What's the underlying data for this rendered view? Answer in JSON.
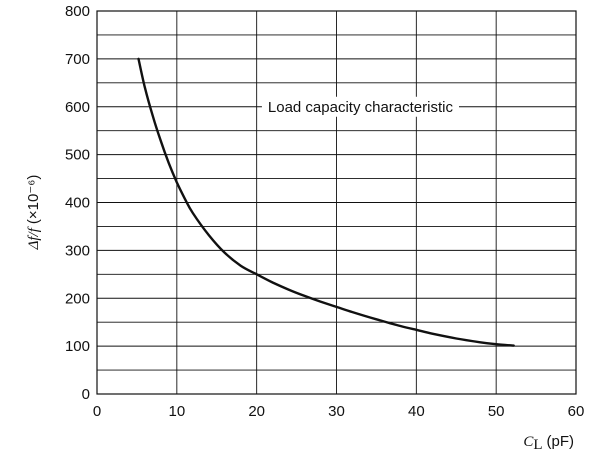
{
  "chart_data": {
    "type": "line",
    "title": "",
    "xlabel": {
      "symbol": "C",
      "subscript": "L",
      "unit": "(pF)"
    },
    "ylabel": {
      "text": "Δf/f",
      "unit": "(×10⁻⁶)"
    },
    "xlim": [
      0,
      60
    ],
    "ylim": [
      0,
      800
    ],
    "xticks": [
      0,
      10,
      20,
      30,
      40,
      50,
      60
    ],
    "yticks": [
      0,
      100,
      200,
      300,
      400,
      500,
      600,
      700,
      800
    ],
    "grid": {
      "x_step": 10,
      "y_step": 50
    },
    "series": [
      {
        "x": [
          5.2,
          6,
          7,
          8,
          9,
          10,
          11,
          12,
          14,
          16,
          18,
          20,
          22,
          24,
          26,
          28,
          30,
          32,
          35,
          38,
          40,
          42,
          45,
          48,
          50,
          52.2
        ],
        "y": [
          700,
          640,
          580,
          528,
          482,
          442,
          408,
          378,
          332,
          295,
          268,
          250,
          233,
          218,
          205,
          193,
          182,
          171,
          156,
          142,
          134,
          126,
          116,
          108,
          104,
          101
        ]
      }
    ],
    "annotation": {
      "text": "Load capacity characteristic",
      "x": 33,
      "y": 600
    }
  }
}
